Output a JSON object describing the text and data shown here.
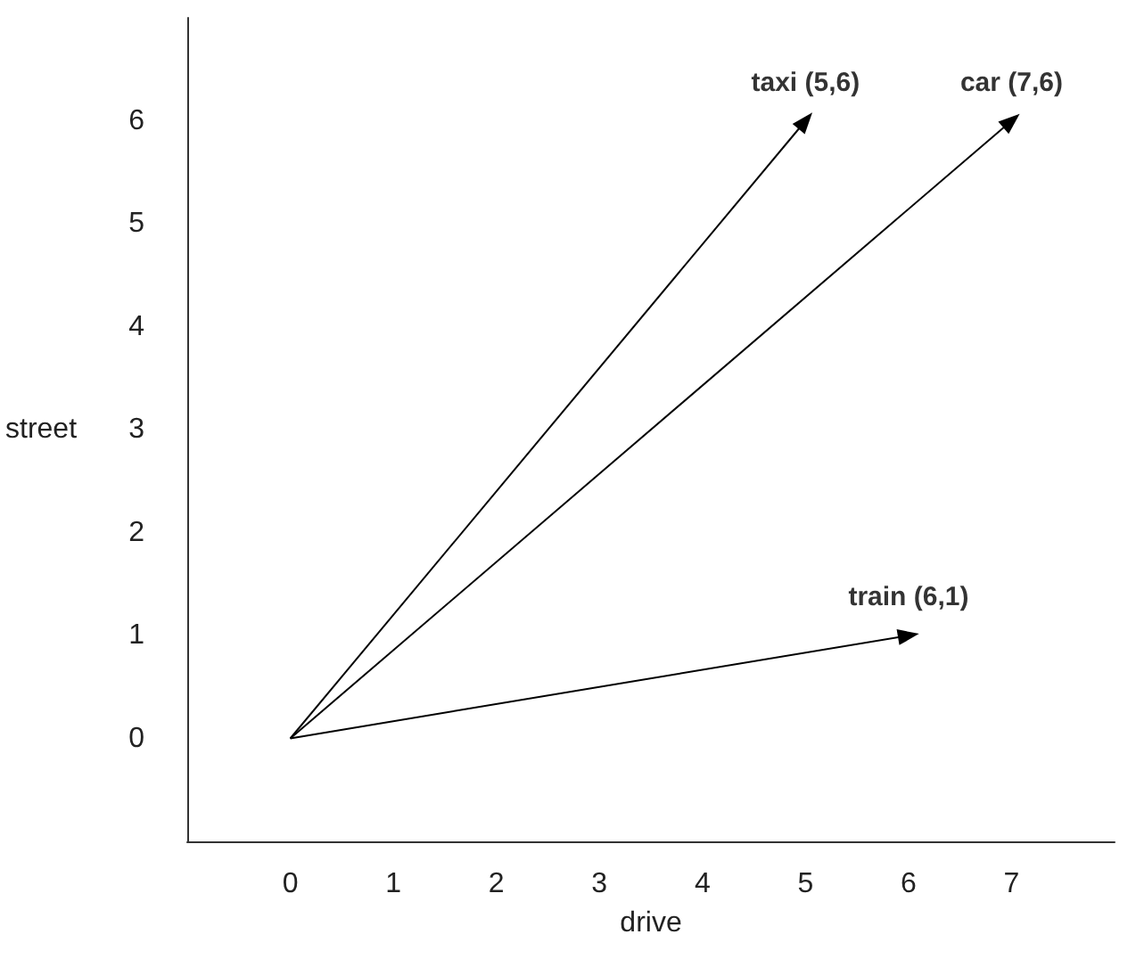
{
  "chart_data": {
    "type": "line",
    "xlabel": "drive",
    "ylabel": "street",
    "xlim": [
      -1,
      8
    ],
    "ylim": [
      -1,
      7
    ],
    "xticks": [
      0,
      1,
      2,
      3,
      4,
      5,
      6,
      7
    ],
    "yticks": [
      0,
      1,
      2,
      3,
      4,
      5,
      6
    ],
    "grid": false,
    "marker": "triangle",
    "series": [
      {
        "color": "#000000",
        "x": [
          0,
          5
        ],
        "values": [
          0,
          6
        ]
      },
      {
        "color": "#000000",
        "x": [
          0,
          7
        ],
        "values": [
          0,
          6
        ]
      },
      {
        "color": "#000000",
        "x": [
          0,
          6
        ],
        "values": [
          0,
          1
        ]
      }
    ],
    "annotations": [
      {
        "text": "taxi (5,6)",
        "x": 5,
        "y": 6
      },
      {
        "text": "car (7,6)",
        "x": 7,
        "y": 6
      },
      {
        "text": "train (6,1)",
        "x": 6,
        "y": 1
      }
    ]
  }
}
